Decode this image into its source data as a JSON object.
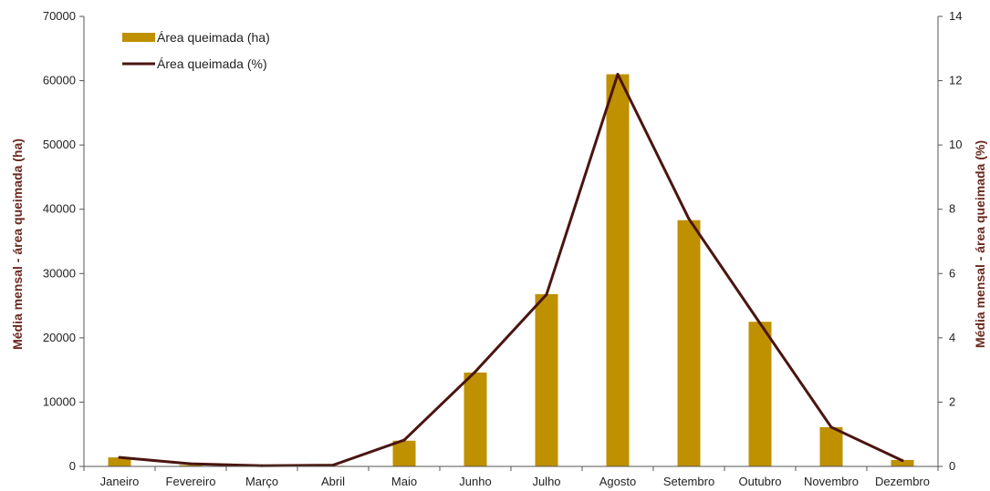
{
  "colors": {
    "bar": "#BF9000",
    "line": "#4A1510",
    "axis": "#555555",
    "axis_title": "#6B2A1F"
  },
  "chart_data": {
    "type": "bar",
    "categories": [
      "Janeiro",
      "Fevereiro",
      "Março",
      "Abril",
      "Maio",
      "Junho",
      "Julho",
      "Agosto",
      "Setembro",
      "Outubro",
      "Novembro",
      "Dezembro"
    ],
    "series": [
      {
        "name": "Área queimada (ha)",
        "type": "bar",
        "axis": "left",
        "values": [
          1400,
          200,
          100,
          100,
          4000,
          14600,
          26800,
          61000,
          38300,
          22500,
          6100,
          1000
        ]
      },
      {
        "name": "Área queimada (%)",
        "type": "line",
        "axis": "right",
        "values": [
          0.28,
          0.08,
          0.02,
          0.04,
          0.82,
          2.95,
          5.35,
          12.2,
          7.7,
          4.45,
          1.22,
          0.18
        ]
      }
    ],
    "title": "",
    "xlabel": "",
    "ylabel_left": "Média mensal - área queimada (ha)",
    "ylabel_right": "Média mensal - área queimada (%)",
    "ylim_left": [
      0,
      70000
    ],
    "ylim_right": [
      0,
      14
    ],
    "yticks_left": [
      "0",
      "10000",
      "20000",
      "30000",
      "40000",
      "50000",
      "60000",
      "70000"
    ],
    "yticks_right": [
      "0",
      "2",
      "4",
      "6",
      "8",
      "10",
      "12",
      "14"
    ],
    "grid": false,
    "legend_position": "top-left"
  }
}
